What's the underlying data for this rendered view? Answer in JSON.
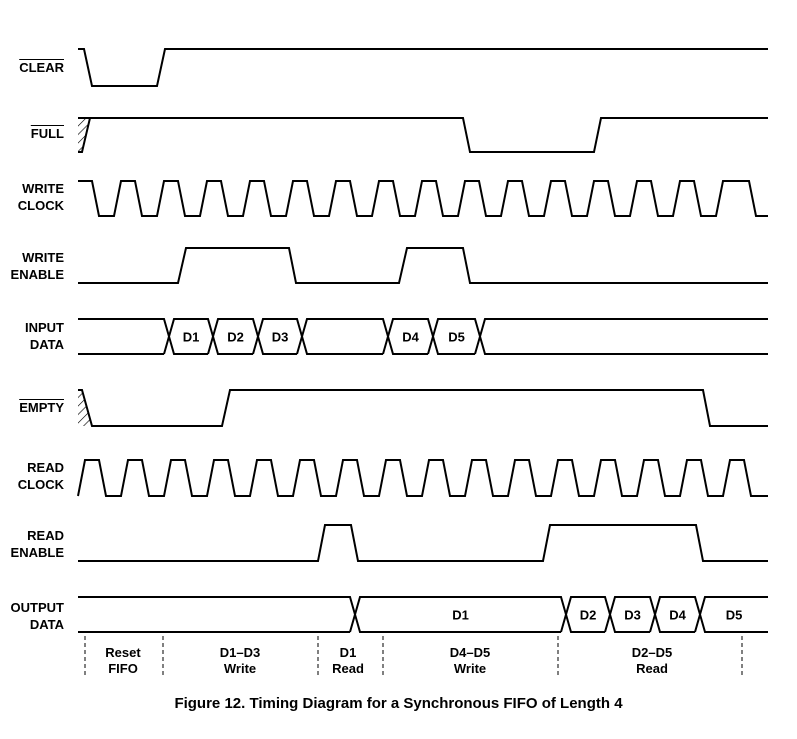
{
  "signals": [
    {
      "id": "clear",
      "line1": "CLEAR",
      "line2": "",
      "overbar": true
    },
    {
      "id": "full",
      "line1": "FULL",
      "line2": "",
      "overbar": true
    },
    {
      "id": "write-clock",
      "line1": "WRITE",
      "line2": "CLOCK",
      "overbar": false
    },
    {
      "id": "write-enable",
      "line1": "WRITE",
      "line2": "ENABLE",
      "overbar": false
    },
    {
      "id": "input-data",
      "line1": "INPUT",
      "line2": "DATA",
      "overbar": false
    },
    {
      "id": "empty",
      "line1": "EMPTY",
      "line2": "",
      "overbar": true
    },
    {
      "id": "read-clock",
      "line1": "READ",
      "line2": "CLOCK",
      "overbar": false
    },
    {
      "id": "read-enable",
      "line1": "READ",
      "line2": "ENABLE",
      "overbar": false
    },
    {
      "id": "output-data",
      "line1": "OUTPUT",
      "line2": "DATA",
      "overbar": false
    }
  ],
  "input_data_words": [
    "D1",
    "D2",
    "D3",
    "D4",
    "D5"
  ],
  "output_data_words": [
    "D1",
    "D2",
    "D3",
    "D4",
    "D5"
  ],
  "phases": [
    {
      "line1": "Reset",
      "line2": "FIFO"
    },
    {
      "line1": "D1–D3",
      "line2": "Write"
    },
    {
      "line1": "D1",
      "line2": "Read"
    },
    {
      "line1": "D4–D5",
      "line2": "Write"
    },
    {
      "line1": "D2–D5",
      "line2": "Read"
    }
  ],
  "caption": "Figure 12.  Timing Diagram for a Synchronous FIFO of Length 4"
}
